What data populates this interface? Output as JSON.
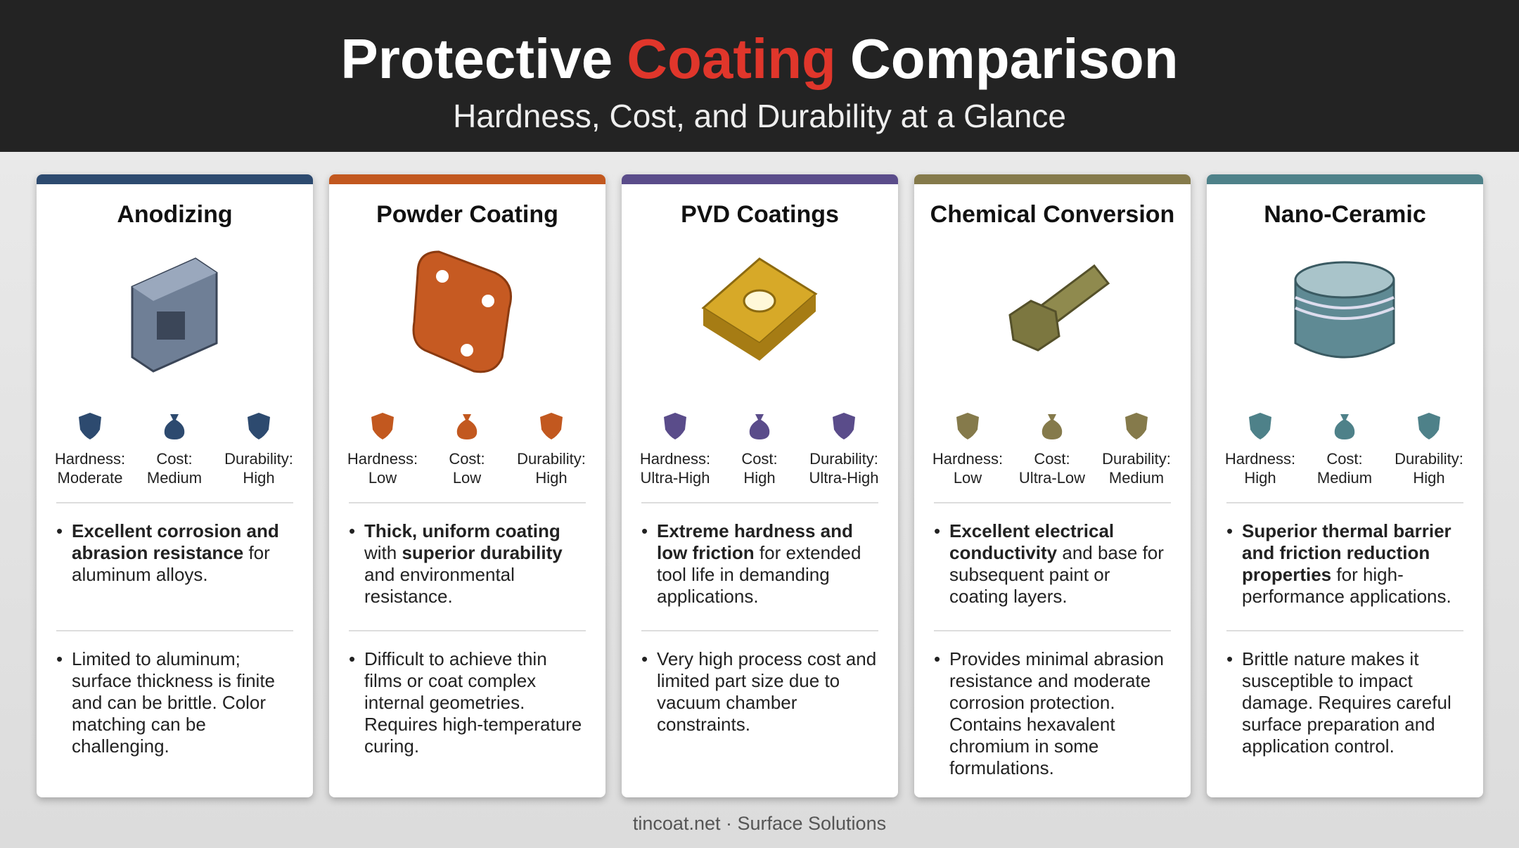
{
  "header": {
    "title": [
      {
        "text": "Protective",
        "accent": false
      },
      {
        "text": "Coating",
        "accent": true
      },
      {
        "text": "Comparison",
        "accent": false
      }
    ],
    "subtitle": "Hardness, Cost, and Durability at a Glance"
  },
  "cards": [
    {
      "title": "Anodizing",
      "color": "#2d4a6f",
      "ratings": [
        {
          "label": "Hardness:",
          "value": "Moderate"
        },
        {
          "label": "Cost:",
          "value": "Medium"
        },
        {
          "label": "Durability:",
          "value": "High"
        }
      ],
      "pros": [
        {
          "text": "Excellent corrosion and abrasion resistance",
          "bold": true
        },
        {
          "text": " for aluminum alloys.",
          "bold": false
        }
      ],
      "cons": "Limited to aluminum; surface thickness is finite and can be brittle. Color matching can be challenging."
    },
    {
      "title": "Powder Coating",
      "color": "#c2581f",
      "ratings": [
        {
          "label": "Hardness:",
          "value": "Low"
        },
        {
          "label": "Cost:",
          "value": "Low"
        },
        {
          "label": "Durability:",
          "value": "High"
        }
      ],
      "pros": [
        {
          "text": "Thick, uniform coating",
          "bold": true
        },
        {
          "text": " with ",
          "bold": false
        },
        {
          "text": "superior durability",
          "bold": true
        },
        {
          "text": " and environmental resistance.",
          "bold": false
        }
      ],
      "cons": "Difficult to achieve thin films or coat complex internal geometries. Requires high-temperature curing."
    },
    {
      "title": "PVD Coatings",
      "color": "#5a4c8a",
      "ratings": [
        {
          "label": "Hardness:",
          "value": "Ultra-High"
        },
        {
          "label": "Cost:",
          "value": "High"
        },
        {
          "label": "Durability:",
          "value": "Ultra-High"
        }
      ],
      "pros": [
        {
          "text": "Extreme hardness and low friction",
          "bold": true
        },
        {
          "text": " for extended tool life in demanding applications.",
          "bold": false
        }
      ],
      "cons": "Very high process cost and limited part size due to vacuum chamber constraints."
    },
    {
      "title": "Chemical Conversion",
      "color": "#857a4b",
      "ratings": [
        {
          "label": "Hardness:",
          "value": "Low"
        },
        {
          "label": "Cost:",
          "value": "Ultra-Low"
        },
        {
          "label": "Durability:",
          "value": "Medium"
        }
      ],
      "pros": [
        {
          "text": "Excellent electrical conductivity",
          "bold": true
        },
        {
          "text": " and base for subsequent paint or coating layers.",
          "bold": false
        }
      ],
      "cons": "Provides minimal abrasion resistance and moderate corrosion protection. Contains hexavalent chromium in some formulations."
    },
    {
      "title": "Nano-Ceramic",
      "color": "#4e8189",
      "ratings": [
        {
          "label": "Hardness:",
          "value": "High"
        },
        {
          "label": "Cost:",
          "value": "Medium"
        },
        {
          "label": "Durability:",
          "value": "High"
        }
      ],
      "pros": [
        {
          "text": "Superior thermal barrier and friction reduction properties",
          "bold": true
        },
        {
          "text": " for high-performance applications.",
          "bold": false
        }
      ],
      "cons": "Brittle nature makes it susceptible to impact damage. Requires careful surface preparation and application control."
    }
  ],
  "footer": "tincoat.net · Surface Solutions"
}
